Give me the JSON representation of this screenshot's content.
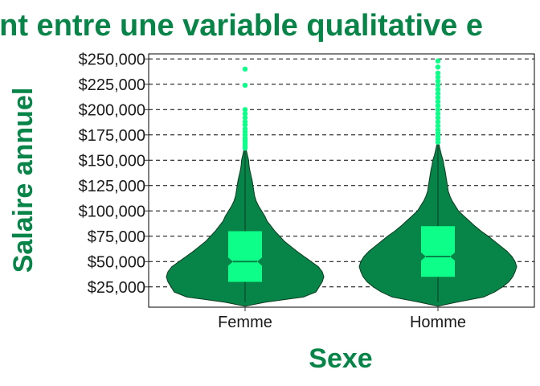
{
  "colors": {
    "violin_fill": "#078447",
    "violin_stroke": "#0d3b20",
    "box_fill": "#0dff8a",
    "outlier": "#0dff8a",
    "title": "#078447",
    "axis_title": "#078447"
  },
  "chart_data": {
    "type": "violin",
    "title": "ent entre une variable qualitative e",
    "xlabel": "Sexe",
    "ylabel": "Salaire annuel",
    "ylim": [
      5000,
      255000
    ],
    "y_ticks": [
      25000,
      50000,
      75000,
      100000,
      125000,
      150000,
      175000,
      200000,
      225000,
      250000
    ],
    "y_tick_labels": [
      "$25,000",
      "$50,000",
      "$75,000",
      "$100,000",
      "$125,000",
      "$150,000",
      "$175,000",
      "$200,000",
      "$225,000",
      "$250,000"
    ],
    "grid": "horizontal dashed",
    "categories": [
      "Femme",
      "Homme"
    ],
    "groups": [
      {
        "category": "Femme",
        "box": {
          "q1": 30000,
          "median": 50000,
          "q3": 80000,
          "notch_low": 46000,
          "notch_high": 54000
        },
        "whisker": [
          10000,
          160000
        ],
        "density": [
          [
            10000,
            0.26
          ],
          [
            15000,
            0.74
          ],
          [
            20000,
            0.9
          ],
          [
            25000,
            0.94
          ],
          [
            30000,
            0.98
          ],
          [
            35000,
            1.0
          ],
          [
            40000,
            0.98
          ],
          [
            45000,
            0.93
          ],
          [
            50000,
            0.84
          ],
          [
            55000,
            0.75
          ],
          [
            60000,
            0.66
          ],
          [
            65000,
            0.58
          ],
          [
            70000,
            0.5
          ],
          [
            75000,
            0.44
          ],
          [
            80000,
            0.38
          ],
          [
            85000,
            0.33
          ],
          [
            90000,
            0.28
          ],
          [
            95000,
            0.25
          ],
          [
            100000,
            0.21
          ],
          [
            105000,
            0.17
          ],
          [
            110000,
            0.14
          ],
          [
            115000,
            0.12
          ],
          [
            120000,
            0.11
          ],
          [
            125000,
            0.1
          ],
          [
            130000,
            0.09
          ],
          [
            135000,
            0.075
          ],
          [
            140000,
            0.06
          ],
          [
            145000,
            0.05
          ],
          [
            150000,
            0.045
          ],
          [
            155000,
            0.03
          ],
          [
            160000,
            0.015
          ]
        ],
        "outliers": [
          162000,
          164000,
          166000,
          168000,
          170000,
          172000,
          175000,
          178000,
          181000,
          185000,
          188000,
          192000,
          196000,
          200000,
          224000,
          240000
        ]
      },
      {
        "category": "Homme",
        "box": {
          "q1": 35000,
          "median": 55000,
          "q3": 85000,
          "notch_low": 51000,
          "notch_high": 59000
        },
        "whisker": [
          10000,
          165000
        ],
        "density": [
          [
            10000,
            0.24
          ],
          [
            15000,
            0.58
          ],
          [
            20000,
            0.72
          ],
          [
            25000,
            0.82
          ],
          [
            30000,
            0.9
          ],
          [
            35000,
            0.95
          ],
          [
            40000,
            0.98
          ],
          [
            45000,
            1.0
          ],
          [
            50000,
            0.98
          ],
          [
            55000,
            0.94
          ],
          [
            60000,
            0.88
          ],
          [
            65000,
            0.8
          ],
          [
            70000,
            0.72
          ],
          [
            75000,
            0.64
          ],
          [
            80000,
            0.55
          ],
          [
            85000,
            0.47
          ],
          [
            90000,
            0.4
          ],
          [
            95000,
            0.33
          ],
          [
            100000,
            0.26
          ],
          [
            105000,
            0.22
          ],
          [
            110000,
            0.18
          ],
          [
            115000,
            0.15
          ],
          [
            120000,
            0.13
          ],
          [
            125000,
            0.12
          ],
          [
            130000,
            0.11
          ],
          [
            135000,
            0.1
          ],
          [
            140000,
            0.09
          ],
          [
            145000,
            0.075
          ],
          [
            150000,
            0.065
          ],
          [
            155000,
            0.045
          ],
          [
            160000,
            0.03
          ],
          [
            165000,
            0.015
          ]
        ],
        "outliers": [
          168000,
          171000,
          174000,
          177000,
          180000,
          184000,
          188000,
          192000,
          196000,
          200000,
          204000,
          208000,
          212000,
          216000,
          220000,
          224000,
          228000,
          232000,
          236000,
          242000,
          248000
        ]
      }
    ]
  }
}
